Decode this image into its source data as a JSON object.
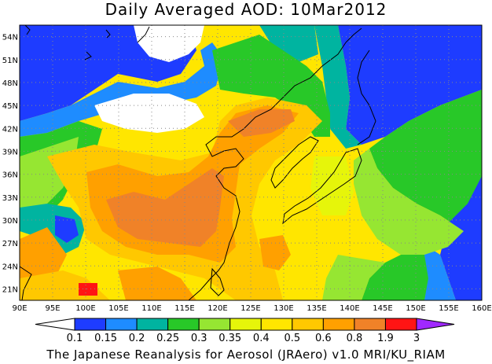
{
  "title": "Daily Averaged AOD: 10Mar2012",
  "footer": "The Japanese Reanalysis for Aerosol (JRAero) v1.0 MRI/KU_RIAM",
  "map": {
    "lon_range": [
      90,
      160
    ],
    "lat_range": [
      19.5,
      55.5
    ],
    "lon_ticks": [
      "90E",
      "95E",
      "100E",
      "105E",
      "110E",
      "115E",
      "120E",
      "125E",
      "130E",
      "135E",
      "140E",
      "145E",
      "150E",
      "155E",
      "160E"
    ],
    "lat_ticks": [
      "21N",
      "24N",
      "27N",
      "30N",
      "33N",
      "36N",
      "39N",
      "42N",
      "45N",
      "48N",
      "51N",
      "54N"
    ]
  },
  "colorbar": {
    "labels": [
      "0.1",
      "0.15",
      "0.2",
      "0.25",
      "0.3",
      "0.35",
      "0.4",
      "0.5",
      "0.6",
      "0.8",
      "1.9",
      "3"
    ],
    "colors": [
      "#ffffff",
      "#1e3cff",
      "#1e8cff",
      "#00b4a0",
      "#28c828",
      "#96e632",
      "#e6f50a",
      "#ffe600",
      "#ffc800",
      "#ffa000",
      "#f08228",
      "#ff1414",
      "#a028ff"
    ]
  },
  "aod_classes": {
    "blue": "#1e3cff",
    "lightblue": "#1e8cff",
    "teal": "#00b4a0",
    "green": "#28c828",
    "lime": "#96e632",
    "yellow": "#e6f50a",
    "gold": "#ffe600",
    "amber": "#ffc800",
    "orange": "#ffa000",
    "darkorange": "#f08228",
    "red": "#ff1414"
  }
}
